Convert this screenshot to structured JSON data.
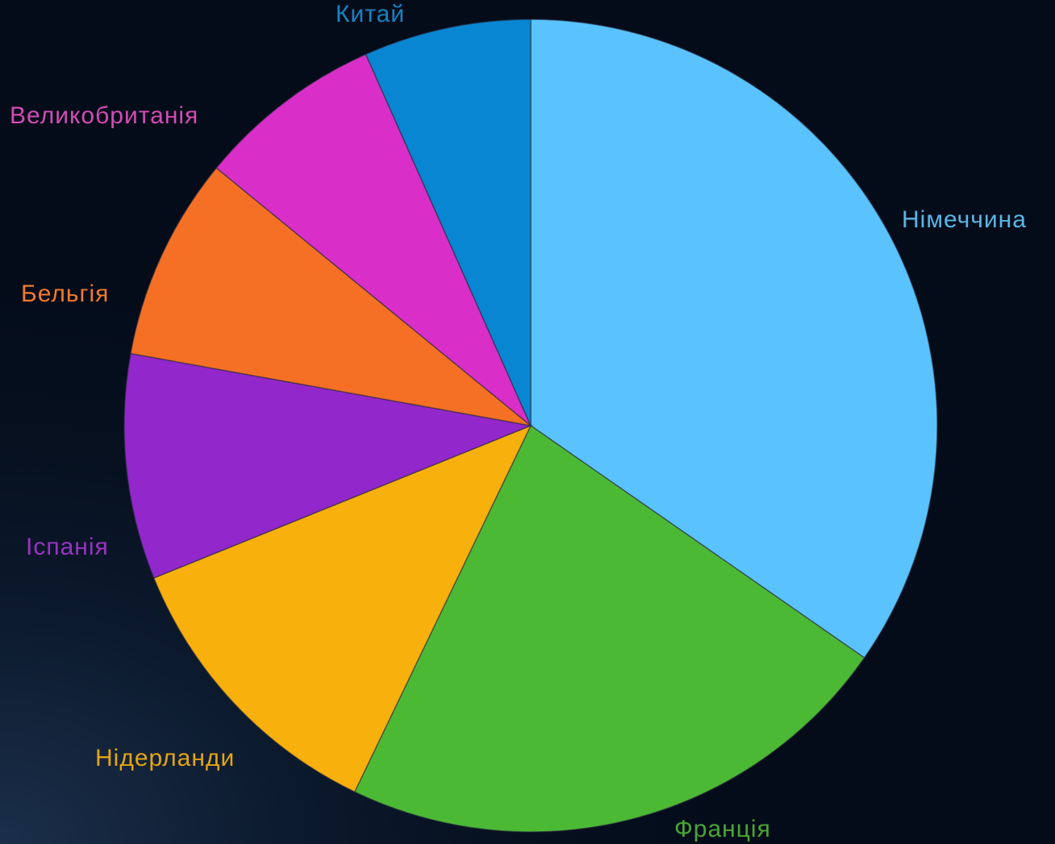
{
  "chart_data": {
    "type": "pie",
    "title": "",
    "start": "top",
    "direction": "clockwise",
    "slices": [
      {
        "label": "Німеччина",
        "value": 36.0,
        "color": "#5ac3fd"
      },
      {
        "label": "Франція",
        "value": 23.3,
        "color": "#4cb935"
      },
      {
        "label": "Нідерланди",
        "value": 12.2,
        "color": "#f7b00c"
      },
      {
        "label": "Іспанія",
        "value": 9.3,
        "color": "#9227cc"
      },
      {
        "label": "Бельгія",
        "value": 8.4,
        "color": "#f57025"
      },
      {
        "label": "Великобританія",
        "value": 7.7,
        "color": "#d92fc8"
      },
      {
        "label": "Китай",
        "value": 6.9,
        "color": "#0886d2"
      }
    ],
    "label_colors": [
      "#5ab6e6",
      "#49a534",
      "#e4a512",
      "#9a32c4",
      "#f27a2c",
      "#d34cb4",
      "#1883c2"
    ]
  }
}
